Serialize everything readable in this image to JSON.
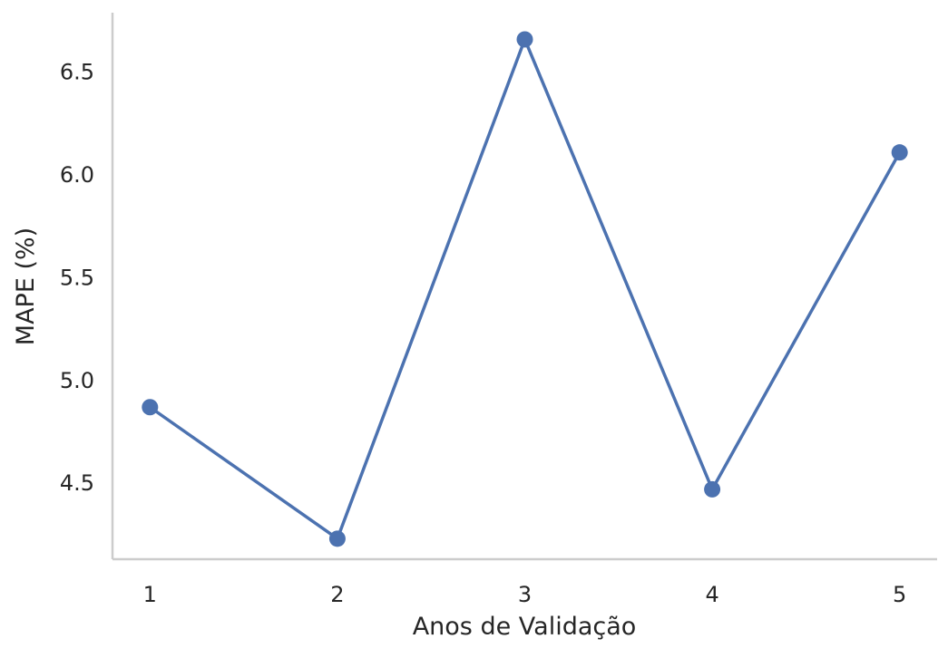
{
  "chart_data": {
    "type": "line",
    "xlabel": "Anos de Validação",
    "ylabel": "MAPE (%)",
    "x": [
      1,
      2,
      3,
      4,
      5
    ],
    "x_tick_labels": [
      "1",
      "2",
      "3",
      "4",
      "5"
    ],
    "y_ticks": [
      4.5,
      5.0,
      5.5,
      6.0,
      6.5
    ],
    "y_tick_labels": [
      "4.5",
      "5.0",
      "5.5",
      "6.0",
      "6.5"
    ],
    "xlim": [
      0.8,
      5.2
    ],
    "ylim": [
      4.13,
      6.79
    ],
    "series": [
      {
        "values": [
          4.87,
          4.23,
          6.66,
          4.47,
          6.11
        ]
      }
    ],
    "grid": false,
    "colors": {
      "line": "#4c72b0",
      "axis": "#cccccc",
      "text": "#262626"
    }
  }
}
